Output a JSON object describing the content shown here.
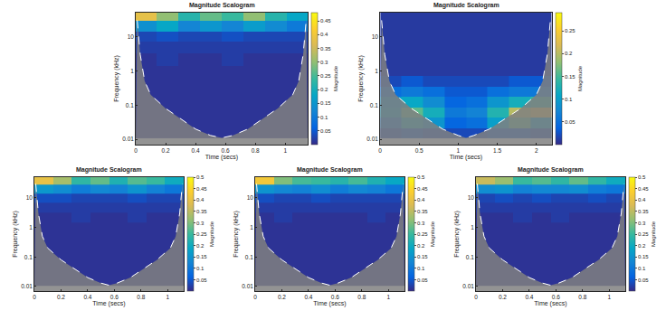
{
  "chart_data": [
    {
      "type": "heatmap",
      "title": "Magnitude Scalogram",
      "x_label": "Time (secs)",
      "y_label": "Frequency (kHz)",
      "colorbar_label": "Magnitude",
      "log": "y",
      "xlim": [
        0,
        1.15
      ],
      "ylim": [
        0.007,
        50
      ],
      "xticks": [
        0,
        0.2,
        0.4,
        0.6,
        0.8,
        1
      ],
      "yticks": [
        0.01,
        0.1,
        1,
        10
      ],
      "zlim": [
        0,
        0.48
      ],
      "zticks": [
        0.05,
        0.1,
        0.15,
        0.2,
        0.25,
        0.3,
        0.35,
        0.4,
        0.45
      ],
      "x": [
        0.07,
        0.21,
        0.36,
        0.5,
        0.65,
        0.79,
        0.94,
        1.08
      ],
      "y": [
        0.015,
        0.03,
        0.06,
        0.12,
        0.25,
        0.5,
        1,
        2,
        5,
        10,
        20,
        40
      ],
      "z": [
        [
          0.01,
          0.01,
          0.01,
          0.01,
          0.01,
          0.01,
          0.01,
          0.01
        ],
        [
          0.01,
          0.01,
          0.01,
          0.01,
          0.01,
          0.01,
          0.01,
          0.01
        ],
        [
          0.01,
          0.01,
          0.01,
          0.01,
          0.01,
          0.01,
          0.01,
          0.01
        ],
        [
          0.01,
          0.01,
          0.01,
          0.01,
          0.01,
          0.01,
          0.01,
          0.01
        ],
        [
          0.01,
          0.01,
          0.01,
          0.01,
          0.01,
          0.01,
          0.01,
          0.01
        ],
        [
          0.01,
          0.01,
          0.01,
          0.01,
          0.01,
          0.01,
          0.01,
          0.01
        ],
        [
          0.01,
          0.01,
          0.01,
          0.01,
          0.01,
          0.01,
          0.01,
          0.01
        ],
        [
          0.01,
          0.02,
          0.01,
          0.01,
          0.02,
          0.01,
          0.01,
          0.01
        ],
        [
          0.02,
          0.02,
          0.02,
          0.02,
          0.02,
          0.02,
          0.02,
          0.02
        ],
        [
          0.03,
          0.04,
          0.03,
          0.03,
          0.04,
          0.03,
          0.03,
          0.03
        ],
        [
          0.14,
          0.18,
          0.12,
          0.15,
          0.12,
          0.16,
          0.13,
          0.1
        ],
        [
          0.38,
          0.3,
          0.22,
          0.27,
          0.24,
          0.3,
          0.22,
          0.18
        ]
      ],
      "coi": {
        "x": [
          0.01,
          0.03,
          0.06,
          0.1,
          0.2,
          0.3,
          0.4,
          0.5,
          0.575,
          0.65,
          0.75,
          0.85,
          0.95,
          1.05,
          1.09,
          1.12,
          1.14
        ],
        "y": [
          30,
          3,
          0.5,
          0.2,
          0.08,
          0.04,
          0.02,
          0.013,
          0.011,
          0.013,
          0.02,
          0.04,
          0.08,
          0.2,
          0.5,
          3,
          30
        ]
      }
    },
    {
      "type": "heatmap",
      "title": "Magnitude Scalogram",
      "x_label": "Time (secs)",
      "y_label": "Frequency (kHz)",
      "colorbar_label": "Magnitude",
      "log": "y",
      "xlim": [
        0,
        2.2
      ],
      "ylim": [
        0.007,
        50
      ],
      "xticks": [
        0,
        0.5,
        1,
        1.5,
        2
      ],
      "yticks": [
        0.01,
        0.1,
        1,
        10
      ],
      "zlim": [
        0,
        0.29
      ],
      "zticks": [
        0.05,
        0.1,
        0.15,
        0.2,
        0.25
      ],
      "x": [
        0.14,
        0.41,
        0.69,
        0.96,
        1.24,
        1.51,
        1.79,
        2.06
      ],
      "y": [
        0.015,
        0.03,
        0.06,
        0.12,
        0.25,
        0.5,
        1,
        2,
        5,
        10,
        20,
        40
      ],
      "z": [
        [
          0.02,
          0.03,
          0.02,
          0.02,
          0.02,
          0.03,
          0.03,
          0.02
        ],
        [
          0.06,
          0.12,
          0.09,
          0.04,
          0.05,
          0.1,
          0.16,
          0.1
        ],
        [
          0.1,
          0.16,
          0.12,
          0.06,
          0.07,
          0.13,
          0.2,
          0.22
        ],
        [
          0.09,
          0.11,
          0.08,
          0.04,
          0.05,
          0.09,
          0.12,
          0.14
        ],
        [
          0.05,
          0.06,
          0.05,
          0.03,
          0.03,
          0.05,
          0.06,
          0.06
        ],
        [
          0.02,
          0.03,
          0.02,
          0.02,
          0.02,
          0.02,
          0.03,
          0.03
        ],
        [
          0.01,
          0.01,
          0.01,
          0.01,
          0.01,
          0.01,
          0.01,
          0.01
        ],
        [
          0.01,
          0.01,
          0.01,
          0.01,
          0.01,
          0.01,
          0.01,
          0.01
        ],
        [
          0.01,
          0.01,
          0.01,
          0.01,
          0.01,
          0.01,
          0.01,
          0.01
        ],
        [
          0.01,
          0.01,
          0.01,
          0.01,
          0.01,
          0.01,
          0.01,
          0.01
        ],
        [
          0.01,
          0.01,
          0.01,
          0.01,
          0.01,
          0.01,
          0.01,
          0.01
        ],
        [
          0.01,
          0.01,
          0.01,
          0.01,
          0.01,
          0.01,
          0.01,
          0.01
        ]
      ],
      "coi": {
        "x": [
          0.02,
          0.06,
          0.12,
          0.2,
          0.4,
          0.6,
          0.8,
          1,
          1.1,
          1.2,
          1.4,
          1.6,
          1.8,
          2,
          2.08,
          2.14,
          2.18
        ],
        "y": [
          30,
          3,
          0.5,
          0.2,
          0.08,
          0.04,
          0.02,
          0.013,
          0.011,
          0.013,
          0.02,
          0.04,
          0.08,
          0.2,
          0.5,
          3,
          30
        ]
      }
    },
    {
      "type": "heatmap",
      "title": "Magnitude Scalogram",
      "x_label": "Time (secs)",
      "y_label": "Frequency (kHz)",
      "colorbar_label": "Magnitude",
      "log": "y",
      "xlim": [
        0,
        1.12
      ],
      "ylim": [
        0.007,
        50
      ],
      "xticks": [
        0,
        0.2,
        0.4,
        0.6,
        0.8,
        1
      ],
      "yticks": [
        0.01,
        0.1,
        1,
        10
      ],
      "zlim": [
        0,
        0.5
      ],
      "zticks": [
        0.05,
        0.1,
        0.15,
        0.2,
        0.25,
        0.3,
        0.35,
        0.4,
        0.45,
        0.5
      ],
      "x": [
        0.07,
        0.21,
        0.35,
        0.49,
        0.63,
        0.77,
        0.91,
        1.05
      ],
      "y": [
        0.015,
        0.03,
        0.06,
        0.12,
        0.25,
        0.5,
        1,
        2,
        5,
        10,
        20,
        40
      ],
      "z": [
        [
          0.01,
          0.01,
          0.01,
          0.01,
          0.01,
          0.01,
          0.01,
          0.01
        ],
        [
          0.01,
          0.01,
          0.01,
          0.01,
          0.01,
          0.01,
          0.01,
          0.01
        ],
        [
          0.01,
          0.01,
          0.01,
          0.01,
          0.01,
          0.01,
          0.01,
          0.01
        ],
        [
          0.01,
          0.01,
          0.01,
          0.01,
          0.01,
          0.01,
          0.01,
          0.01
        ],
        [
          0.01,
          0.01,
          0.01,
          0.01,
          0.01,
          0.01,
          0.01,
          0.01
        ],
        [
          0.01,
          0.01,
          0.01,
          0.01,
          0.01,
          0.01,
          0.01,
          0.01
        ],
        [
          0.01,
          0.01,
          0.01,
          0.01,
          0.01,
          0.01,
          0.01,
          0.01
        ],
        [
          0.01,
          0.01,
          0.02,
          0.01,
          0.01,
          0.02,
          0.01,
          0.01
        ],
        [
          0.02,
          0.02,
          0.02,
          0.02,
          0.02,
          0.02,
          0.02,
          0.02
        ],
        [
          0.04,
          0.04,
          0.03,
          0.03,
          0.03,
          0.04,
          0.03,
          0.03
        ],
        [
          0.16,
          0.14,
          0.11,
          0.13,
          0.12,
          0.15,
          0.12,
          0.1
        ],
        [
          0.4,
          0.33,
          0.24,
          0.28,
          0.22,
          0.27,
          0.25,
          0.2
        ]
      ],
      "coi": {
        "x": [
          0.01,
          0.03,
          0.06,
          0.1,
          0.2,
          0.3,
          0.4,
          0.5,
          0.56,
          0.62,
          0.72,
          0.82,
          0.92,
          1.02,
          1.06,
          1.09,
          1.11
        ],
        "y": [
          30,
          3,
          0.5,
          0.2,
          0.08,
          0.04,
          0.02,
          0.013,
          0.011,
          0.013,
          0.02,
          0.04,
          0.08,
          0.2,
          0.5,
          3,
          30
        ]
      }
    },
    {
      "type": "heatmap",
      "title": "Magnitude Scalogram",
      "x_label": "Time (secs)",
      "y_label": "Frequency (kHz)",
      "colorbar_label": "Magnitude",
      "log": "y",
      "xlim": [
        0,
        1.12
      ],
      "ylim": [
        0.007,
        50
      ],
      "xticks": [
        0,
        0.2,
        0.4,
        0.6,
        0.8,
        1
      ],
      "yticks": [
        0.01,
        0.1,
        1,
        10
      ],
      "zlim": [
        0,
        0.5
      ],
      "zticks": [
        0.05,
        0.1,
        0.15,
        0.2,
        0.25,
        0.3,
        0.35,
        0.4,
        0.45,
        0.5
      ],
      "x": [
        0.07,
        0.21,
        0.35,
        0.49,
        0.63,
        0.77,
        0.91,
        1.05
      ],
      "y": [
        0.015,
        0.03,
        0.06,
        0.12,
        0.25,
        0.5,
        1,
        2,
        5,
        10,
        20,
        40
      ],
      "z": [
        [
          0.01,
          0.01,
          0.01,
          0.01,
          0.01,
          0.01,
          0.01,
          0.01
        ],
        [
          0.01,
          0.01,
          0.01,
          0.01,
          0.01,
          0.01,
          0.01,
          0.01
        ],
        [
          0.01,
          0.01,
          0.01,
          0.01,
          0.01,
          0.01,
          0.01,
          0.01
        ],
        [
          0.01,
          0.01,
          0.01,
          0.01,
          0.01,
          0.01,
          0.01,
          0.01
        ],
        [
          0.01,
          0.01,
          0.01,
          0.01,
          0.01,
          0.01,
          0.01,
          0.01
        ],
        [
          0.01,
          0.01,
          0.01,
          0.01,
          0.01,
          0.01,
          0.01,
          0.01
        ],
        [
          0.01,
          0.01,
          0.01,
          0.01,
          0.01,
          0.01,
          0.01,
          0.01
        ],
        [
          0.01,
          0.02,
          0.01,
          0.01,
          0.01,
          0.01,
          0.02,
          0.01
        ],
        [
          0.02,
          0.02,
          0.02,
          0.02,
          0.02,
          0.02,
          0.02,
          0.02
        ],
        [
          0.04,
          0.03,
          0.03,
          0.04,
          0.03,
          0.03,
          0.03,
          0.03
        ],
        [
          0.15,
          0.13,
          0.12,
          0.14,
          0.11,
          0.13,
          0.12,
          0.1
        ],
        [
          0.42,
          0.3,
          0.26,
          0.25,
          0.23,
          0.26,
          0.22,
          0.19
        ]
      ],
      "coi": {
        "x": [
          0.01,
          0.03,
          0.06,
          0.1,
          0.2,
          0.3,
          0.4,
          0.5,
          0.56,
          0.62,
          0.72,
          0.82,
          0.92,
          1.02,
          1.06,
          1.09,
          1.11
        ],
        "y": [
          30,
          3,
          0.5,
          0.2,
          0.08,
          0.04,
          0.02,
          0.013,
          0.011,
          0.013,
          0.02,
          0.04,
          0.08,
          0.2,
          0.5,
          3,
          30
        ]
      }
    },
    {
      "type": "heatmap",
      "title": "Magnitude Scalogram",
      "x_label": "Time (secs)",
      "y_label": "Frequency (kHz)",
      "colorbar_label": "Magnitude",
      "log": "y",
      "xlim": [
        0,
        1.12
      ],
      "ylim": [
        0.007,
        50
      ],
      "xticks": [
        0,
        0.2,
        0.4,
        0.6,
        0.8,
        1
      ],
      "yticks": [
        0.01,
        0.1,
        1,
        10
      ],
      "zlim": [
        0,
        0.5
      ],
      "zticks": [
        0.05,
        0.1,
        0.15,
        0.2,
        0.25,
        0.3,
        0.35,
        0.4,
        0.45,
        0.5
      ],
      "x": [
        0.07,
        0.21,
        0.35,
        0.49,
        0.63,
        0.77,
        0.91,
        1.05
      ],
      "y": [
        0.015,
        0.03,
        0.06,
        0.12,
        0.25,
        0.5,
        1,
        2,
        5,
        10,
        20,
        40
      ],
      "z": [
        [
          0.01,
          0.01,
          0.01,
          0.01,
          0.01,
          0.01,
          0.01,
          0.01
        ],
        [
          0.01,
          0.01,
          0.01,
          0.01,
          0.01,
          0.01,
          0.01,
          0.01
        ],
        [
          0.01,
          0.01,
          0.01,
          0.01,
          0.01,
          0.01,
          0.01,
          0.01
        ],
        [
          0.01,
          0.01,
          0.01,
          0.01,
          0.01,
          0.01,
          0.01,
          0.01
        ],
        [
          0.01,
          0.01,
          0.01,
          0.01,
          0.01,
          0.01,
          0.01,
          0.01
        ],
        [
          0.01,
          0.01,
          0.01,
          0.01,
          0.01,
          0.01,
          0.01,
          0.01
        ],
        [
          0.01,
          0.01,
          0.01,
          0.01,
          0.01,
          0.01,
          0.01,
          0.01
        ],
        [
          0.01,
          0.01,
          0.02,
          0.01,
          0.02,
          0.01,
          0.01,
          0.01
        ],
        [
          0.02,
          0.02,
          0.02,
          0.02,
          0.02,
          0.02,
          0.02,
          0.02
        ],
        [
          0.03,
          0.04,
          0.03,
          0.04,
          0.03,
          0.03,
          0.04,
          0.03
        ],
        [
          0.14,
          0.15,
          0.12,
          0.13,
          0.13,
          0.14,
          0.11,
          0.1
        ],
        [
          0.36,
          0.32,
          0.25,
          0.27,
          0.24,
          0.28,
          0.24,
          0.2
        ]
      ],
      "coi": {
        "x": [
          0.01,
          0.03,
          0.06,
          0.1,
          0.2,
          0.3,
          0.4,
          0.5,
          0.56,
          0.62,
          0.72,
          0.82,
          0.92,
          1.02,
          1.06,
          1.09,
          1.11
        ],
        "y": [
          30,
          3,
          0.5,
          0.2,
          0.08,
          0.04,
          0.02,
          0.013,
          0.011,
          0.013,
          0.02,
          0.04,
          0.08,
          0.2,
          0.5,
          3,
          30
        ]
      }
    }
  ]
}
